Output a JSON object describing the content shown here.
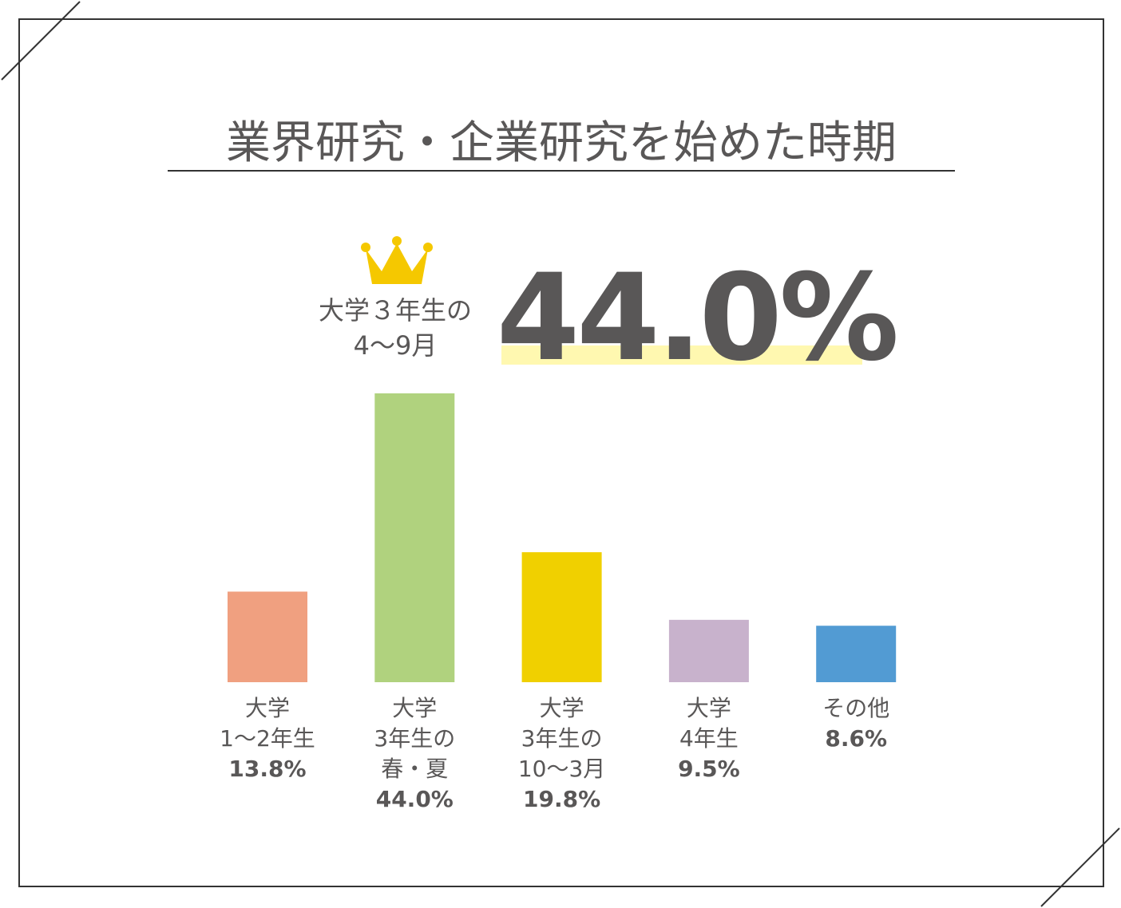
{
  "chart_data": {
    "type": "bar",
    "title": "業界研究・企業研究を始めた時期",
    "annotation": {
      "lines": [
        "大学３年生の",
        "4〜9月"
      ],
      "value": 44.0,
      "label": "44.0%"
    },
    "categories": [
      [
        "大学",
        "1〜2年生"
      ],
      [
        "大学",
        "3年生の",
        "春・夏"
      ],
      [
        "大学",
        "3年生の",
        "10〜3月"
      ],
      [
        "大学",
        "4年生"
      ],
      [
        "その他"
      ]
    ],
    "values": [
      13.8,
      44.0,
      19.8,
      9.5,
      8.6
    ],
    "value_labels": [
      "13.8%",
      "44.0%",
      "19.8%",
      "9.5%",
      "8.6%"
    ],
    "colors": [
      "#f0a080",
      "#b0d27e",
      "#f0d000",
      "#c8b2cc",
      "#529bd3"
    ]
  }
}
